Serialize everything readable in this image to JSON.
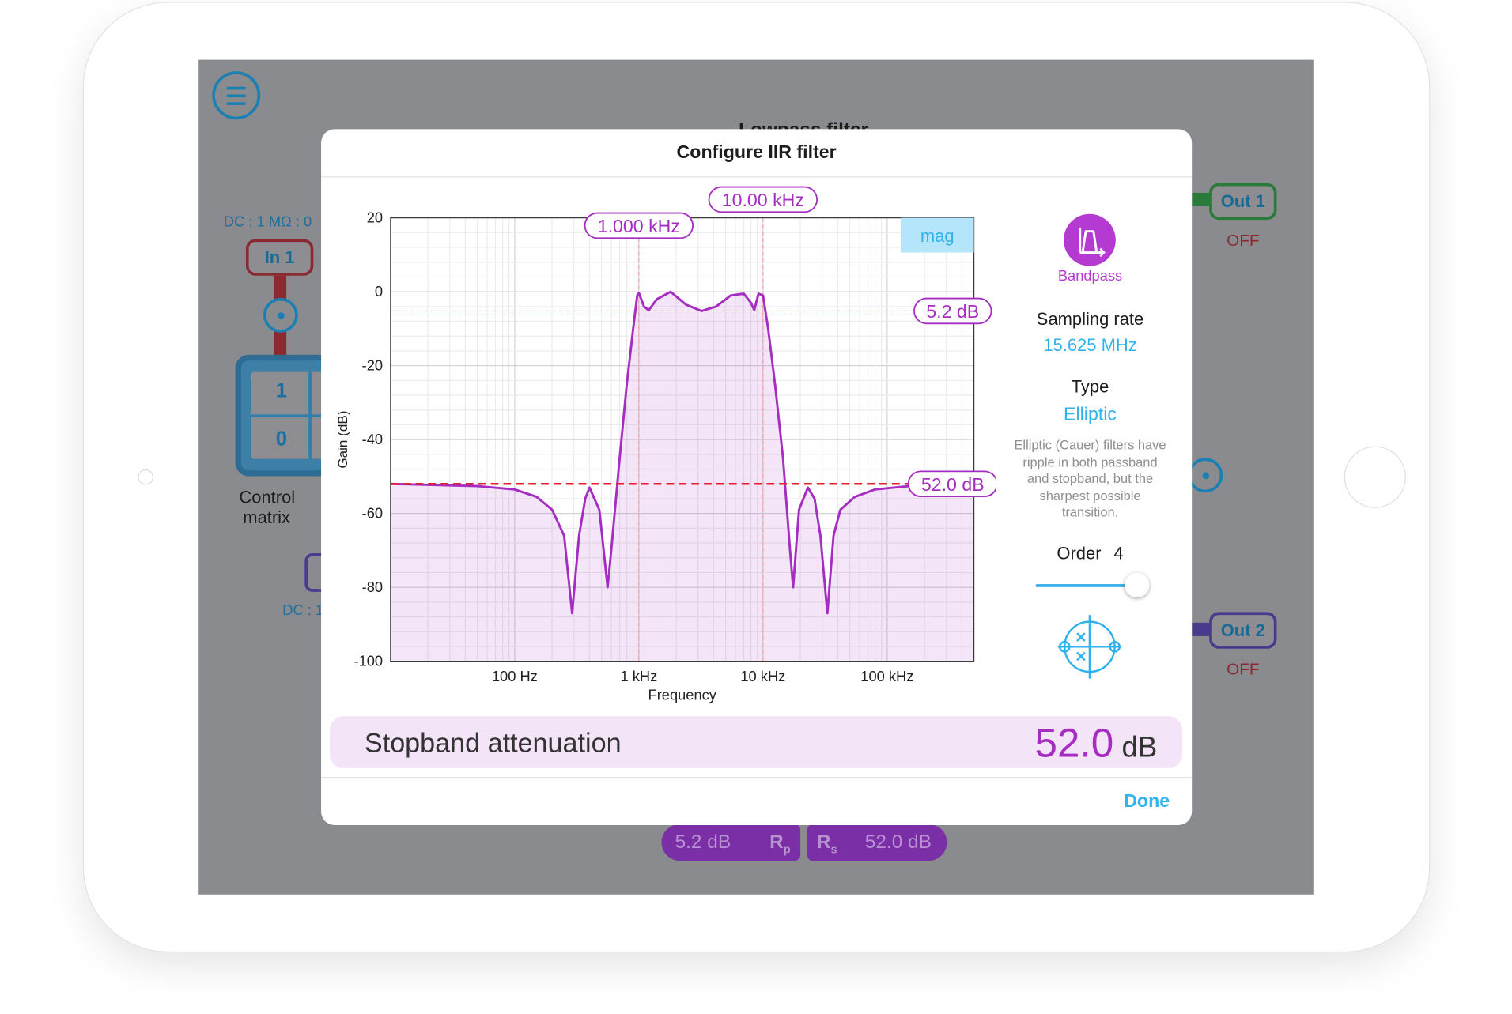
{
  "app": {
    "background_title": "Lowpass filter",
    "menu_icon": "hamburger-menu-icon"
  },
  "background": {
    "in1": {
      "label": "In 1",
      "caption": "DC : 1 MΩ : 0"
    },
    "out1": {
      "label": "Out 1",
      "status": "OFF"
    },
    "out2": {
      "label": "Out 2",
      "status": "OFF"
    },
    "control_matrix": {
      "label_line1": "Control",
      "label_line2": "matrix",
      "cell_top": "1",
      "cell_bottom": "0"
    },
    "dc_caption2": "DC : 1",
    "pill_rp": {
      "value": "5.2 dB",
      "symbol": "R",
      "sub": "p"
    },
    "pill_rs": {
      "value": "52.0 dB",
      "symbol": "R",
      "sub": "s"
    }
  },
  "dialog": {
    "title": "Configure IIR filter",
    "filter_shape": {
      "label": "Bandpass",
      "icon": "bandpass-icon",
      "color": "#b43ad1"
    },
    "sampling_rate": {
      "label": "Sampling rate",
      "value": "15.625 MHz"
    },
    "type": {
      "label": "Type",
      "value": "Elliptic"
    },
    "type_description": [
      "Elliptic (Cauer) filters have",
      "ripple in both passband",
      "and stopband, but the",
      "sharpest possible",
      "transition."
    ],
    "order": {
      "label": "Order",
      "value": "4",
      "slider_fraction": 0.95
    },
    "pole_zero_icon": "pole-zero-plot-icon",
    "parameter": {
      "label": "Stopband attenuation",
      "value": "52.0",
      "unit": "dB"
    },
    "done_label": "Done",
    "accent_color": "#2fb2ee",
    "filter_color": "#a62dc2"
  },
  "chart_data": {
    "type": "line",
    "title": "",
    "xlabel": "Frequency",
    "ylabel": "Gain (dB)",
    "x_scale": "log",
    "xlim_hz": [
      10,
      500000
    ],
    "ylim": [
      -100,
      20
    ],
    "x_ticks": [
      {
        "hz": 100,
        "label": "100 Hz"
      },
      {
        "hz": 1000,
        "label": "1 kHz"
      },
      {
        "hz": 10000,
        "label": "10 kHz"
      },
      {
        "hz": 100000,
        "label": "100 kHz"
      }
    ],
    "y_ticks": [
      20,
      0,
      -20,
      -40,
      -60,
      -80,
      -100
    ],
    "grid": true,
    "mode_badge": "mag",
    "markers": {
      "f_low": {
        "label": "1.000 kHz",
        "hz": 1000
      },
      "f_high": {
        "label": "10.00 kHz",
        "hz": 10000
      },
      "passband_ripple": {
        "label": "5.2 dB",
        "db": -5.2
      },
      "stopband_attenuation": {
        "label": "52.0 dB",
        "db": -52
      }
    },
    "series": [
      {
        "points": [
          [
            10,
            -52
          ],
          [
            50,
            -52.6
          ],
          [
            100,
            -53.5
          ],
          [
            150,
            -55.5
          ],
          [
            200,
            -59
          ],
          [
            250,
            -66
          ],
          [
            290,
            -87
          ],
          [
            330,
            -66
          ],
          [
            370,
            -56
          ],
          [
            400,
            -53
          ],
          [
            480,
            -59
          ],
          [
            560,
            -80
          ],
          [
            600,
            -70
          ],
          [
            700,
            -45
          ],
          [
            800,
            -25
          ],
          [
            900,
            -10
          ],
          [
            970,
            -1
          ],
          [
            1000,
            -0.3
          ],
          [
            1100,
            -4
          ],
          [
            1200,
            -5
          ],
          [
            1400,
            -2
          ],
          [
            1800,
            0
          ],
          [
            2400,
            -3.5
          ],
          [
            3200,
            -5.2
          ],
          [
            4200,
            -4
          ],
          [
            5500,
            -1
          ],
          [
            7000,
            -0.5
          ],
          [
            8000,
            -3
          ],
          [
            8500,
            -5
          ],
          [
            9200,
            -0.5
          ],
          [
            10000,
            -1
          ],
          [
            11000,
            -10
          ],
          [
            12500,
            -25
          ],
          [
            14500,
            -45
          ],
          [
            16500,
            -70
          ],
          [
            17500,
            -80
          ],
          [
            19500,
            -59
          ],
          [
            23000,
            -53
          ],
          [
            26000,
            -56
          ],
          [
            29000,
            -66
          ],
          [
            33000,
            -87
          ],
          [
            37000,
            -66
          ],
          [
            42000,
            -59
          ],
          [
            55000,
            -55.5
          ],
          [
            80000,
            -53.5
          ],
          [
            150000,
            -52.6
          ],
          [
            500000,
            -52
          ]
        ]
      }
    ]
  }
}
